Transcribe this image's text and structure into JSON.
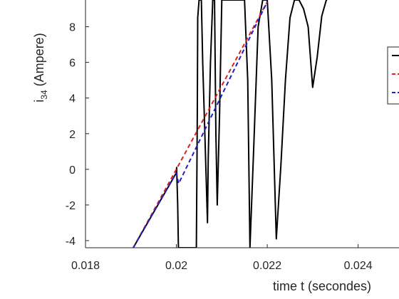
{
  "chart_data": {
    "type": "line",
    "xlabel": "time t (secondes)",
    "ylabel_main": "i",
    "ylabel_sub": "34",
    "ylabel_rest": " (Ampere)",
    "xlim": [
      0.018,
      0.0249
    ],
    "ylim": [
      -4.4,
      9.5
    ],
    "xticks": [
      0.018,
      0.02,
      0.022,
      0.024
    ],
    "xtick_labels": [
      "0.018",
      "0.02",
      "0.022",
      "0.024"
    ],
    "yticks": [
      -4,
      -2,
      0,
      2,
      4,
      6,
      8
    ],
    "ytick_labels": [
      "-4",
      "-2",
      "0",
      "2",
      "4",
      "6",
      "8"
    ],
    "grid": false,
    "legend": "right (partially clipped)",
    "series": [
      {
        "color": "#000000",
        "style": "solid",
        "x": [
          0.01905,
          0.02,
          0.020005,
          0.02003,
          0.020045,
          0.020065,
          0.02007,
          0.02007,
          0.02044,
          0.02046,
          0.02047,
          0.0205,
          0.02052,
          0.02055,
          0.02058,
          0.02065,
          0.020685,
          0.0207,
          0.02075,
          0.0208,
          0.02084,
          0.02087,
          0.0209,
          0.02095,
          0.021,
          0.0211,
          0.0212,
          0.02126,
          0.0213,
          0.0214,
          0.0215,
          0.02157,
          0.02162,
          0.0217,
          0.0218,
          0.0219,
          0.022,
          0.0221,
          0.0222,
          0.0223,
          0.0224,
          0.0225,
          0.0226,
          0.0227,
          0.0228,
          0.0229,
          0.023,
          0.0231,
          0.0232,
          0.0233,
          0.02332
        ],
        "y": [
          -4.4,
          -0.2,
          0.1,
          -2.0,
          -4.4,
          -4.4,
          -4.4,
          -4.4,
          -4.4,
          3.0,
          8.5,
          9.5,
          9.5,
          9.5,
          6.0,
          0.0,
          -3.0,
          0.5,
          6.0,
          9.5,
          9.5,
          2.0,
          -2.0,
          3.0,
          9.5,
          9.5,
          9.5,
          9.5,
          9.5,
          9.5,
          9.5,
          5.0,
          -4.4,
          1.0,
          8.0,
          9.5,
          9.5,
          5.0,
          -3.9,
          0.2,
          5.0,
          8.5,
          9.5,
          9.5,
          9.0,
          8.0,
          4.6,
          6.3,
          8.6,
          9.5,
          9.5
        ],
        "note_pieces": "drawn as sharp oscillations"
      },
      {
        "color": "#dd1f1f",
        "style": "dashed",
        "x": [
          0.01905,
          0.02,
          0.022
        ],
        "y": [
          -4.4,
          0.0,
          9.4
        ]
      },
      {
        "color": "#1f1fcc",
        "style": "dashed",
        "x": [
          0.01905,
          0.02,
          0.02005,
          0.022
        ],
        "y": [
          -4.4,
          -0.2,
          -0.8,
          9.4
        ]
      }
    ]
  },
  "legend_colors": [
    "#000000",
    "#dd1f1f",
    "#1f1fcc"
  ]
}
